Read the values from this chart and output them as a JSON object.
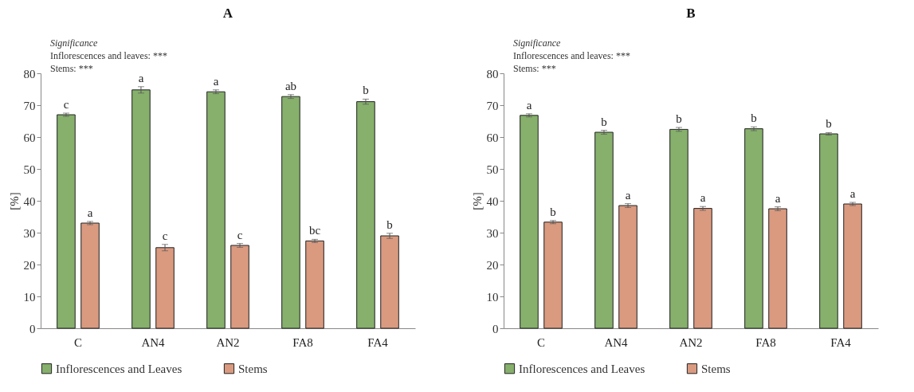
{
  "chart_data": [
    {
      "type": "bar",
      "title": "A",
      "ylabel": "[%]",
      "categories": [
        "C",
        "AN4",
        "AN2",
        "FA8",
        "FA4"
      ],
      "ylim": [
        0,
        80
      ],
      "yticks": [
        0,
        10,
        20,
        30,
        40,
        50,
        60,
        70,
        80
      ],
      "grid": false,
      "legend": "bottom",
      "annotations": [
        "Significance",
        "Inflorescences and leaves: ***",
        "Stems: ***"
      ],
      "series": [
        {
          "name": "Inflorescences and Leaves",
          "color": "#86b06c",
          "values": [
            67.0,
            74.8,
            74.2,
            72.7,
            71.1
          ],
          "errors": [
            0.5,
            1.0,
            0.6,
            0.6,
            0.8
          ],
          "value_labels": [
            "c",
            "a",
            "a",
            "ab",
            "b"
          ]
        },
        {
          "name": "Stems",
          "color": "#d99a80",
          "values": [
            33.0,
            25.3,
            26.0,
            27.4,
            29.0
          ],
          "errors": [
            0.5,
            1.0,
            0.6,
            0.5,
            0.8
          ],
          "value_labels": [
            "a",
            "c",
            "c",
            "bc",
            "b"
          ]
        }
      ]
    },
    {
      "type": "bar",
      "title": "B",
      "ylabel": "[%]",
      "categories": [
        "C",
        "AN4",
        "AN2",
        "FA8",
        "FA4"
      ],
      "ylim": [
        0,
        80
      ],
      "yticks": [
        0,
        10,
        20,
        30,
        40,
        50,
        60,
        70,
        80
      ],
      "grid": false,
      "legend": "bottom",
      "annotations": [
        "Significance",
        "Inflorescences and leaves: ***",
        "Stems: ***"
      ],
      "series": [
        {
          "name": "Inflorescences and Leaves",
          "color": "#86b06c",
          "values": [
            66.8,
            61.5,
            62.4,
            62.6,
            61.0
          ],
          "errors": [
            0.5,
            0.6,
            0.6,
            0.6,
            0.4
          ],
          "value_labels": [
            "a",
            "b",
            "b",
            "b",
            "b"
          ]
        },
        {
          "name": "Stems",
          "color": "#d99a80",
          "values": [
            33.3,
            38.5,
            37.6,
            37.5,
            39.0
          ],
          "errors": [
            0.5,
            0.6,
            0.6,
            0.6,
            0.5
          ],
          "value_labels": [
            "b",
            "a",
            "a",
            "a",
            "a"
          ]
        }
      ]
    }
  ]
}
